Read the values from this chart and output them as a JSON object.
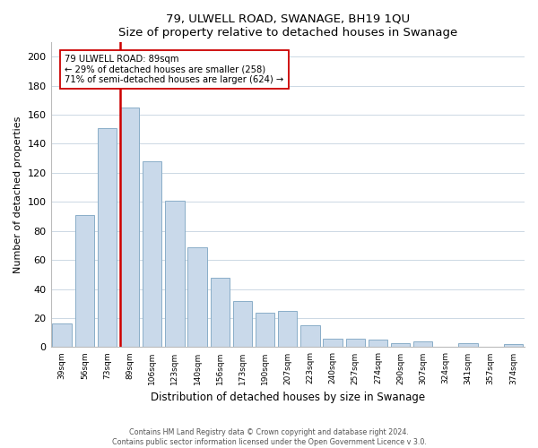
{
  "title1": "79, ULWELL ROAD, SWANAGE, BH19 1QU",
  "title2": "Size of property relative to detached houses in Swanage",
  "xlabel": "Distribution of detached houses by size in Swanage",
  "ylabel": "Number of detached properties",
  "bar_labels": [
    "39sqm",
    "56sqm",
    "73sqm",
    "89sqm",
    "106sqm",
    "123sqm",
    "140sqm",
    "156sqm",
    "173sqm",
    "190sqm",
    "207sqm",
    "223sqm",
    "240sqm",
    "257sqm",
    "274sqm",
    "290sqm",
    "307sqm",
    "324sqm",
    "341sqm",
    "357sqm",
    "374sqm"
  ],
  "bar_values": [
    16,
    91,
    151,
    165,
    128,
    101,
    69,
    48,
    32,
    24,
    25,
    15,
    6,
    6,
    5,
    3,
    4,
    0,
    3,
    0,
    2
  ],
  "bar_color": "#c9d9ea",
  "bar_edgecolor": "#8aaec8",
  "vline_x_index": 3,
  "vline_color": "#cc0000",
  "annotation_title": "79 ULWELL ROAD: 89sqm",
  "annotation_line1": "← 29% of detached houses are smaller (258)",
  "annotation_line2": "71% of semi-detached houses are larger (624) →",
  "annotation_box_edgecolor": "#cc0000",
  "ylim": [
    0,
    210
  ],
  "yticks": [
    0,
    20,
    40,
    60,
    80,
    100,
    120,
    140,
    160,
    180,
    200
  ],
  "footer1": "Contains HM Land Registry data © Crown copyright and database right 2024.",
  "footer2": "Contains public sector information licensed under the Open Government Licence v 3.0.",
  "background_color": "#ffffff",
  "grid_color": "#ccd8e4"
}
